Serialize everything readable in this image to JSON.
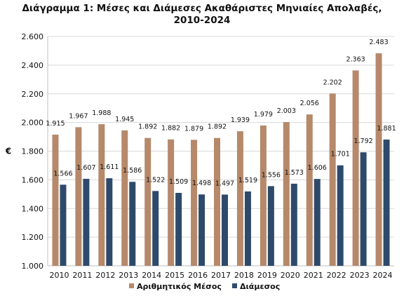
{
  "chart_data": {
    "type": "bar",
    "title_line1": "Διάγραμμα 1: Μέσες και Διάμεσες Ακαθάριστες Μηνιαίες Απολαβές,",
    "title_line2": "2010-2024",
    "ylabel": "€",
    "xlabel": "",
    "ylim": [
      1000,
      2600
    ],
    "ytick_labels": [
      "1.000",
      "1.200",
      "1.400",
      "1.600",
      "1.800",
      "2.000",
      "2.200",
      "2.400",
      "2.600"
    ],
    "grid": true,
    "legend_position": "bottom",
    "categories": [
      "2010",
      "2011",
      "2012",
      "2013",
      "2014",
      "2015",
      "2016",
      "2017",
      "2018",
      "2019",
      "2020",
      "2021",
      "2022",
      "2023",
      "2024"
    ],
    "series": [
      {
        "name": "Αριθμητικός Μέσος",
        "color": "#b5896a",
        "values": [
          1915,
          1967,
          1988,
          1945,
          1892,
          1882,
          1879,
          1892,
          1939,
          1979,
          2003,
          2056,
          2202,
          2363,
          2483
        ],
        "labels": [
          "1.915",
          "1.967",
          "1.988",
          "1.945",
          "1.892",
          "1.882",
          "1.879",
          "1.892",
          "1.939",
          "1.979",
          "2.003",
          "2.056",
          "2.202",
          "2.363",
          "2.483"
        ]
      },
      {
        "name": "Διάμεσος",
        "color": "#2e4a6b",
        "values": [
          1566,
          1607,
          1611,
          1586,
          1522,
          1509,
          1498,
          1497,
          1519,
          1556,
          1573,
          1606,
          1701,
          1792,
          1881
        ],
        "labels": [
          "1.566",
          "1.607",
          "1.611",
          "1.586",
          "1.522",
          "1.509",
          "1.498",
          "1.497",
          "1.519",
          "1.556",
          "1.573",
          "1.606",
          "1.701",
          "1.792",
          "1.881"
        ]
      }
    ]
  }
}
